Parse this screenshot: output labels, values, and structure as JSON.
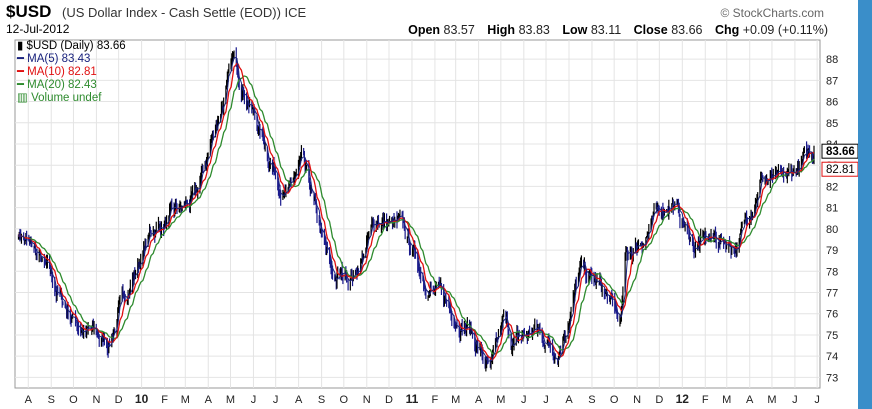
{
  "header": {
    "symbol": "$USD",
    "description": "(US Dollar Index - Cash Settle (EOD))",
    "exchange": "ICE",
    "date": "12-Jul-2012",
    "brand": "© StockCharts.com",
    "open_label": "Open",
    "open_value": "83.57",
    "high_label": "High",
    "high_value": "83.83",
    "low_label": "Low",
    "low_value": "83.11",
    "close_label": "Close",
    "close_value": "83.66",
    "chg_label": "Chg",
    "chg_value": "+0.09 (+0.11%)"
  },
  "legend": {
    "main": "$USD (Daily) 83.66",
    "ma5": "MA(5) 83.43",
    "ma10": "MA(10) 82.81",
    "ma20": "MA(20) 82.43",
    "volume": "Volume undef"
  },
  "colors": {
    "price": "#000000",
    "down_bar": "#1a1a8c",
    "ma5": "#1a237e",
    "ma10": "#e01010",
    "ma20": "#2e8b2e",
    "grid": "#e4e4e4",
    "frame": "#3a8ec9"
  },
  "chart_data": {
    "type": "line",
    "title": "$USD (US Dollar Index - Cash Settle (EOD))",
    "y_ticks": [
      73,
      74,
      75,
      76,
      77,
      78,
      79,
      80,
      81,
      82,
      83,
      84,
      85,
      86,
      87,
      88
    ],
    "ylim": [
      72.5,
      88.9
    ],
    "x_ticks": [
      "A",
      "S",
      "O",
      "N",
      "D",
      "10",
      "F",
      "M",
      "A",
      "M",
      "J",
      "J",
      "A",
      "S",
      "O",
      "N",
      "D",
      "11",
      "F",
      "M",
      "A",
      "M",
      "J",
      "J",
      "A",
      "S",
      "O",
      "N",
      "D",
      "12",
      "F",
      "M",
      "A",
      "M",
      "J",
      "J"
    ],
    "value_labels": {
      "close": "83.66",
      "ma10": "82.81"
    },
    "series": [
      {
        "name": "$USD",
        "x": [
          "2009-08-01",
          "2009-09-01",
          "2009-10-01",
          "2009-11-01",
          "2009-12-01",
          "2010-01-01",
          "2010-02-01",
          "2010-03-01",
          "2010-04-01",
          "2010-05-01",
          "2010-05-20",
          "2010-06-07",
          "2010-07-01",
          "2010-08-01",
          "2010-08-20",
          "2010-09-01",
          "2010-10-01",
          "2010-11-01",
          "2010-12-01",
          "2011-01-01",
          "2011-02-01",
          "2011-03-01",
          "2011-04-01",
          "2011-05-03",
          "2011-05-20",
          "2011-06-01",
          "2011-07-01",
          "2011-08-01",
          "2011-09-01",
          "2011-10-01",
          "2011-10-25",
          "2011-11-01",
          "2011-12-01",
          "2012-01-01",
          "2012-02-01",
          "2012-03-01",
          "2012-04-01",
          "2012-05-01",
          "2012-06-01",
          "2012-07-01",
          "2012-07-12"
        ],
        "values": [
          80.0,
          78.5,
          76.5,
          75.2,
          74.6,
          77.5,
          80.0,
          80.5,
          81.5,
          85.5,
          87.8,
          86.5,
          84.0,
          81.5,
          83.0,
          81.5,
          77.5,
          78.0,
          80.5,
          80.0,
          77.8,
          76.5,
          75.5,
          73.2,
          75.5,
          74.5,
          75.2,
          74.3,
          78.0,
          77.0,
          75.5,
          78.5,
          80.0,
          81.5,
          79.2,
          79.5,
          79.3,
          82.5,
          82.0,
          83.2,
          83.66
        ]
      }
    ]
  }
}
